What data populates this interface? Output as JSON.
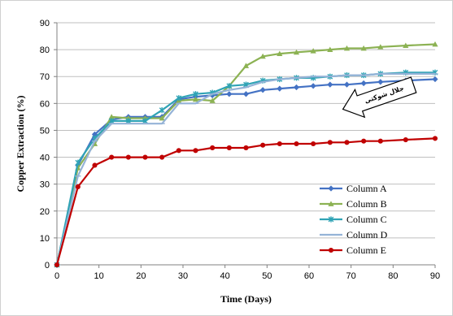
{
  "chart_data": {
    "type": "line",
    "title": "",
    "xlabel": "Time (Days)",
    "ylabel": "Copper Extraction (%)",
    "xlim": [
      0,
      90
    ],
    "ylim": [
      0,
      90
    ],
    "xticks": [
      "0",
      "10",
      "20",
      "30",
      "40",
      "50",
      "60",
      "70",
      "80",
      "90"
    ],
    "yticks": [
      "0",
      "10",
      "20",
      "30",
      "40",
      "50",
      "60",
      "70",
      "80",
      "90"
    ],
    "grid": "horizontal",
    "legend_position": "bottom-right",
    "annotation": {
      "text": "جلال شوکتی",
      "shape": "arrow-left"
    },
    "series": [
      {
        "name": "Column A",
        "color": "#4472C4",
        "marker": "diamond",
        "x": [
          0,
          5,
          9,
          13,
          17,
          21,
          25,
          29,
          33,
          37,
          41,
          45,
          49,
          53,
          57,
          61,
          65,
          69,
          73,
          77,
          83,
          90
        ],
        "y": [
          0,
          37,
          48.5,
          54,
          55,
          55,
          55,
          61.5,
          62.5,
          63,
          63.5,
          63.5,
          65,
          65.5,
          66,
          66.5,
          67,
          67,
          67.5,
          68,
          68.5,
          69
        ]
      },
      {
        "name": "Column B",
        "color": "#8CB253",
        "marker": "triangle",
        "x": [
          0,
          5,
          9,
          13,
          17,
          21,
          25,
          29,
          33,
          37,
          41,
          45,
          49,
          53,
          57,
          61,
          65,
          69,
          73,
          77,
          83,
          90
        ],
        "y": [
          0,
          36,
          45,
          55,
          54.5,
          54.5,
          54.5,
          61,
          61.5,
          61,
          66.5,
          74,
          77.5,
          78.5,
          79,
          79.5,
          80,
          80.5,
          80.5,
          81,
          81.5,
          82
        ]
      },
      {
        "name": "Column C",
        "color": "#2FA3B5",
        "marker": "star",
        "x": [
          0,
          5,
          9,
          13,
          17,
          21,
          25,
          29,
          33,
          37,
          41,
          45,
          49,
          53,
          57,
          61,
          65,
          69,
          73,
          77,
          83,
          90
        ],
        "y": [
          0,
          38,
          47,
          53.5,
          53.5,
          53.5,
          57.5,
          62,
          63.5,
          64,
          66.5,
          67,
          68.5,
          69,
          69.5,
          69.5,
          70,
          70.5,
          70.5,
          71,
          71.5,
          71.5
        ]
      },
      {
        "name": "Column D",
        "color": "#95B3D7",
        "marker": "cross",
        "x": [
          0,
          5,
          9,
          13,
          17,
          21,
          25,
          29,
          33,
          37,
          41,
          45,
          49,
          53,
          57,
          61,
          65,
          69,
          73,
          77,
          83,
          90
        ],
        "y": [
          0,
          33,
          46,
          52.5,
          52.5,
          52.5,
          52.5,
          60,
          60,
          63.5,
          65,
          66,
          68,
          69,
          69.5,
          70,
          70,
          70.5,
          70.5,
          71,
          71,
          71
        ]
      },
      {
        "name": "Column E",
        "color": "#C00000",
        "marker": "circle",
        "x": [
          0,
          5,
          9,
          13,
          17,
          21,
          25,
          29,
          33,
          37,
          41,
          45,
          49,
          53,
          57,
          61,
          65,
          69,
          73,
          77,
          83,
          90
        ],
        "y": [
          0,
          29,
          37,
          40,
          40,
          40,
          40,
          42.5,
          42.5,
          43.5,
          43.5,
          43.5,
          44.5,
          45,
          45,
          45,
          45.5,
          45.5,
          46,
          46,
          46.5,
          47
        ]
      }
    ]
  }
}
